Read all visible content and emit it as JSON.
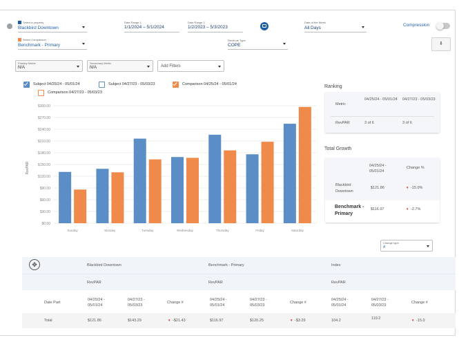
{
  "filters": {
    "property": {
      "label": "Select a property",
      "value": "Blackbird Downtown"
    },
    "date_range_1": {
      "label": "Date Range 1",
      "value": "1/1/2024 – 5/1/2024"
    },
    "date_range_2": {
      "label": "Date Range 2",
      "value": "1/2/2023 – 5/3/2023"
    },
    "day_of_week": {
      "label": "Date of the Week",
      "value": "All Days"
    },
    "comparison_toggle_label": "Compression",
    "comparison": {
      "label": "Select Comparison",
      "value": "Benchmark - Primary"
    },
    "revenue_type": {
      "label": "Revenue Type",
      "value": "COPE"
    },
    "primary_metric": {
      "label": "Primary Metric",
      "value": "N/A"
    },
    "secondary_metric": {
      "label": "Secondary Metric",
      "value": "N/A"
    },
    "add_filters": "Add Filters"
  },
  "legend": {
    "subject_1": "Subject 04/25/24 - 05/01/24",
    "subject_2": "Subject 04/27/23 - 05/03/23",
    "comparison_1": "Comparison 04/25/24 - 05/01/24",
    "comparison_2": "Comparison 04/27/23 - 05/03/23"
  },
  "colors": {
    "blue": "#5b8ec6",
    "orange": "#f08a4b",
    "accent": "#1f5fa8"
  },
  "chart_data": {
    "type": "bar",
    "ylabel": "RevPAR",
    "ylim": [
      0,
      300
    ],
    "ytick_labels": [
      "$300.00",
      "$270.00",
      "$240.00",
      "$210.00",
      "$180.00",
      "$150.00",
      "$120.00",
      "$90.00",
      "$60.00",
      "$30.00",
      "$0.00"
    ],
    "ytick_values": [
      300,
      270,
      240,
      210,
      180,
      150,
      120,
      90,
      60,
      30,
      0
    ],
    "categories": [
      "Sunday",
      "Monday",
      "Tuesday",
      "Wednesday",
      "Thursday",
      "Friday",
      "Saturday"
    ],
    "series": [
      {
        "name": "Subject 04/25/24 - 05/01/24",
        "color": "#5b8ec6",
        "values": [
          131,
          139,
          216,
          169,
          226,
          176,
          254
        ]
      },
      {
        "name": "Comparison 04/25/24 - 05/01/24",
        "color": "#f08a4b",
        "values": [
          86,
          130,
          163,
          167,
          186,
          208,
          297
        ]
      }
    ]
  },
  "ranking": {
    "title": "Ranking",
    "col1": "04/25/24 - 05/01/24",
    "col2": "04/27/23 - 05/03/23",
    "metric_label": "Metric",
    "row_label": "RevPAR",
    "val1": "3 of 6",
    "val2": "3 of 6"
  },
  "total_growth": {
    "title": "Total Growth",
    "col1": "04/25/24 - 05/01/24",
    "col2": "Change %",
    "rows": [
      {
        "name": "Blackbird Downtown",
        "value": "$121.86",
        "change": "-15.0%"
      },
      {
        "name": "Benchmark - Primary",
        "value": "$116.97",
        "change": "-2.7%"
      }
    ]
  },
  "change_type": {
    "label": "Change type",
    "value": "#"
  },
  "table": {
    "groups": [
      "Blackbird Downtown",
      "Benchmark - Primary",
      "Index"
    ],
    "metric": "RevPAR",
    "date_part_label": "Date Part",
    "col_a": "04/25/24 - 05/01/24",
    "col_b": "04/27/23 - 05/03/23",
    "col_change": "Change #",
    "total_row": {
      "label": "Total",
      "values": [
        "$121.86",
        "$143.29",
        "-$21.43",
        "$116.97",
        "$120.25",
        "-$3.29",
        "104.2",
        "119.2",
        "-15.0"
      ]
    }
  }
}
